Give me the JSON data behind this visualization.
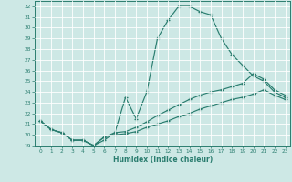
{
  "title": "",
  "xlabel": "Humidex (Indice chaleur)",
  "background_color": "#cde8e5",
  "line_color": "#2a7d6f",
  "grid_color": "#ffffff",
  "xlim": [
    -0.5,
    23.5
  ],
  "ylim": [
    19,
    32.5
  ],
  "yticks": [
    19,
    20,
    21,
    22,
    23,
    24,
    25,
    26,
    27,
    28,
    29,
    30,
    31,
    32
  ],
  "xticks": [
    0,
    1,
    2,
    3,
    4,
    5,
    6,
    7,
    8,
    9,
    10,
    11,
    12,
    13,
    14,
    15,
    16,
    17,
    18,
    19,
    20,
    21,
    22,
    23
  ],
  "series": [
    [
      21.3,
      20.5,
      20.2,
      19.5,
      19.5,
      19.0,
      19.5,
      20.2,
      23.5,
      21.5,
      24.0,
      29.0,
      30.7,
      32.0,
      32.0,
      31.5,
      31.2,
      29.0,
      27.5,
      26.5,
      25.5,
      25.0,
      24.0,
      23.5
    ],
    [
      21.3,
      20.5,
      20.2,
      19.5,
      19.5,
      19.0,
      19.8,
      20.2,
      20.3,
      20.7,
      21.2,
      21.8,
      22.3,
      22.8,
      23.3,
      23.7,
      24.0,
      24.2,
      24.5,
      24.8,
      25.7,
      25.2,
      24.2,
      23.7
    ],
    [
      21.3,
      20.5,
      20.2,
      19.5,
      19.5,
      19.0,
      19.8,
      20.0,
      20.1,
      20.3,
      20.7,
      21.0,
      21.3,
      21.7,
      22.0,
      22.4,
      22.7,
      23.0,
      23.3,
      23.5,
      23.8,
      24.2,
      23.7,
      23.3
    ]
  ]
}
